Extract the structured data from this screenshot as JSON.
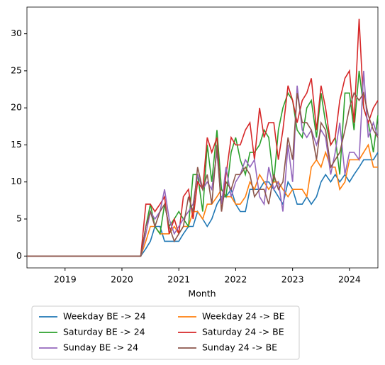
{
  "chart_data": {
    "type": "line",
    "x_label": "Month",
    "x": [
      2018.33,
      2018.42,
      2018.5,
      2018.58,
      2018.67,
      2018.75,
      2018.83,
      2018.92,
      2019,
      2019.08,
      2019.17,
      2019.25,
      2019.33,
      2019.42,
      2019.5,
      2019.58,
      2019.67,
      2019.75,
      2019.83,
      2019.92,
      2020,
      2020.08,
      2020.17,
      2020.25,
      2020.33,
      2020.42,
      2020.5,
      2020.58,
      2020.67,
      2020.75,
      2020.83,
      2020.92,
      2021,
      2021.08,
      2021.17,
      2021.25,
      2021.33,
      2021.42,
      2021.5,
      2021.58,
      2021.67,
      2021.75,
      2021.83,
      2021.92,
      2022,
      2022.08,
      2022.17,
      2022.25,
      2022.33,
      2022.42,
      2022.5,
      2022.58,
      2022.67,
      2022.75,
      2022.83,
      2022.92,
      2023,
      2023.08,
      2023.17,
      2023.25,
      2023.33,
      2023.42,
      2023.5,
      2023.58,
      2023.67,
      2023.75,
      2023.83,
      2023.92,
      2024,
      2024.08,
      2024.17,
      2024.25,
      2024.33,
      2024.42,
      2024.5
    ],
    "series": [
      {
        "name": "Weekday BE -> 24",
        "color": "#1f77b4",
        "values": [
          0,
          0,
          0,
          0,
          0,
          0,
          0,
          0,
          0,
          0,
          0,
          0,
          0,
          0,
          0,
          0,
          0,
          0,
          0,
          0,
          0,
          0,
          0,
          0,
          0,
          1,
          2,
          4,
          4,
          2,
          2,
          2,
          2,
          3,
          4,
          4,
          6,
          5,
          4,
          5,
          7,
          8,
          8,
          9,
          7,
          6,
          6,
          9,
          9,
          9,
          10,
          10,
          9,
          8,
          7,
          10,
          9,
          7,
          7,
          8,
          7,
          8,
          10,
          11,
          10,
          11,
          10,
          11,
          10,
          11,
          12,
          13,
          13,
          13,
          14
        ]
      },
      {
        "name": "Weekday 24 -> BE",
        "color": "#ff7f0e",
        "values": [
          0,
          0,
          0,
          0,
          0,
          0,
          0,
          0,
          0,
          0,
          0,
          0,
          0,
          0,
          0,
          0,
          0,
          0,
          0,
          0,
          0,
          0,
          0,
          0,
          0,
          2,
          4,
          4,
          3,
          3,
          3,
          4,
          3,
          4,
          4,
          6,
          6,
          5,
          7,
          7,
          8,
          9,
          8,
          8,
          7,
          7,
          8,
          10,
          9,
          11,
          10,
          9,
          10,
          10,
          9,
          8,
          9,
          9,
          9,
          8,
          12,
          13,
          12,
          14,
          12,
          12,
          9,
          10,
          13,
          13,
          13,
          14,
          15,
          12,
          12
        ]
      },
      {
        "name": "Saturday BE -> 24",
        "color": "#2ca02c",
        "values": [
          0,
          0,
          0,
          0,
          0,
          0,
          0,
          0,
          0,
          0,
          0,
          0,
          0,
          0,
          0,
          0,
          0,
          0,
          0,
          0,
          0,
          0,
          0,
          0,
          0,
          4,
          7,
          4,
          3,
          7,
          4,
          5,
          6,
          5,
          4,
          11,
          11,
          6,
          15,
          10,
          17,
          9,
          8,
          14,
          16,
          13,
          11,
          14,
          14,
          15,
          17,
          16,
          10,
          17,
          20,
          22,
          21,
          17,
          16,
          20,
          21,
          16,
          22,
          18,
          15,
          16,
          11,
          22,
          22,
          17,
          25,
          20,
          18,
          14,
          19
        ]
      },
      {
        "name": "Saturday 24 -> BE",
        "color": "#d62728",
        "values": [
          0,
          0,
          0,
          0,
          0,
          0,
          0,
          0,
          0,
          0,
          0,
          0,
          0,
          0,
          0,
          0,
          0,
          0,
          0,
          0,
          0,
          0,
          0,
          0,
          0,
          7,
          7,
          6,
          7,
          8,
          3,
          5,
          3,
          8,
          9,
          5,
          10,
          9,
          16,
          14,
          16,
          6,
          11,
          16,
          15,
          15,
          17,
          18,
          13,
          20,
          16,
          18,
          18,
          13,
          17,
          23,
          21,
          18,
          21,
          22,
          24,
          17,
          23,
          20,
          15,
          16,
          21,
          24,
          25,
          18,
          32,
          20,
          18,
          20,
          21
        ]
      },
      {
        "name": "Sunday BE -> 24",
        "color": "#9467bd",
        "values": [
          0,
          0,
          0,
          0,
          0,
          0,
          0,
          0,
          0,
          0,
          0,
          0,
          0,
          0,
          0,
          0,
          0,
          0,
          0,
          0,
          0,
          0,
          0,
          0,
          0,
          3,
          6,
          5,
          6,
          9,
          5,
          3,
          4,
          5,
          6,
          7,
          11,
          9,
          10,
          9,
          14,
          7,
          12,
          8,
          10,
          11,
          13,
          12,
          13,
          8,
          7,
          12,
          9,
          10,
          6,
          15,
          10,
          23,
          17,
          16,
          17,
          15,
          17,
          16,
          11,
          14,
          18,
          11,
          14,
          14,
          13,
          25,
          16,
          18,
          16
        ]
      },
      {
        "name": "Sunday 24 -> BE",
        "color": "#8c564b",
        "values": [
          0,
          0,
          0,
          0,
          0,
          0,
          0,
          0,
          0,
          0,
          0,
          0,
          0,
          0,
          0,
          0,
          0,
          0,
          0,
          0,
          0,
          0,
          0,
          0,
          0,
          4,
          6,
          4,
          6,
          7,
          4,
          2,
          3,
          4,
          8,
          6,
          12,
          9,
          11,
          7,
          15,
          6,
          10,
          9,
          11,
          11,
          12,
          11,
          8,
          9,
          9,
          7,
          11,
          9,
          10,
          16,
          13,
          22,
          18,
          18,
          17,
          13,
          18,
          17,
          12,
          13,
          14,
          17,
          20,
          22,
          21,
          22,
          19,
          17,
          16
        ]
      }
    ],
    "xlim": [
      2018.33,
      2024.5
    ],
    "xticks": [
      2019,
      2020,
      2021,
      2022,
      2023,
      2024
    ],
    "ylim": [
      -1.6,
      33.6
    ],
    "yticks": [
      0,
      5,
      10,
      15,
      20,
      25,
      30
    ],
    "legend": "below"
  }
}
